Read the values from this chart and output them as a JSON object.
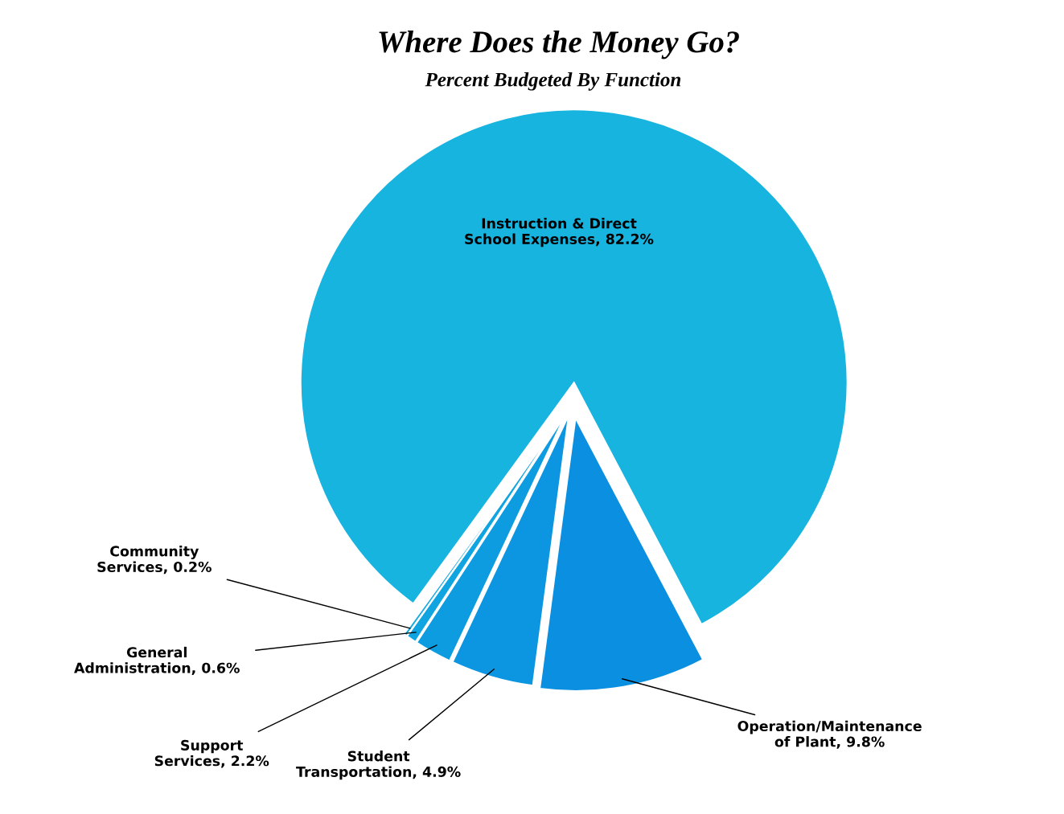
{
  "chart_data": {
    "type": "pie",
    "title": "Where Does the Money Go?",
    "subtitle": "Percent Budgeted By Function",
    "categories": [
      "Instruction & Direct\nSchool Expenses",
      "Operation/Maintenance\nof Plant",
      "Student\nTransportation",
      "Support\nServices",
      "General\nAdministration",
      "Community\nServices"
    ],
    "values": [
      82.2,
      9.8,
      4.9,
      2.2,
      0.6,
      0.2
    ],
    "value_labels": [
      "82.2%",
      "9.8%",
      "4.9%",
      "2.2%",
      "0.6%",
      "0.2%"
    ],
    "colors": [
      "#18b4e0",
      "#0b8fe0",
      "#0c95e0",
      "#0e9ce0",
      "#10a4e0",
      "#12aae0"
    ],
    "legend": false
  }
}
